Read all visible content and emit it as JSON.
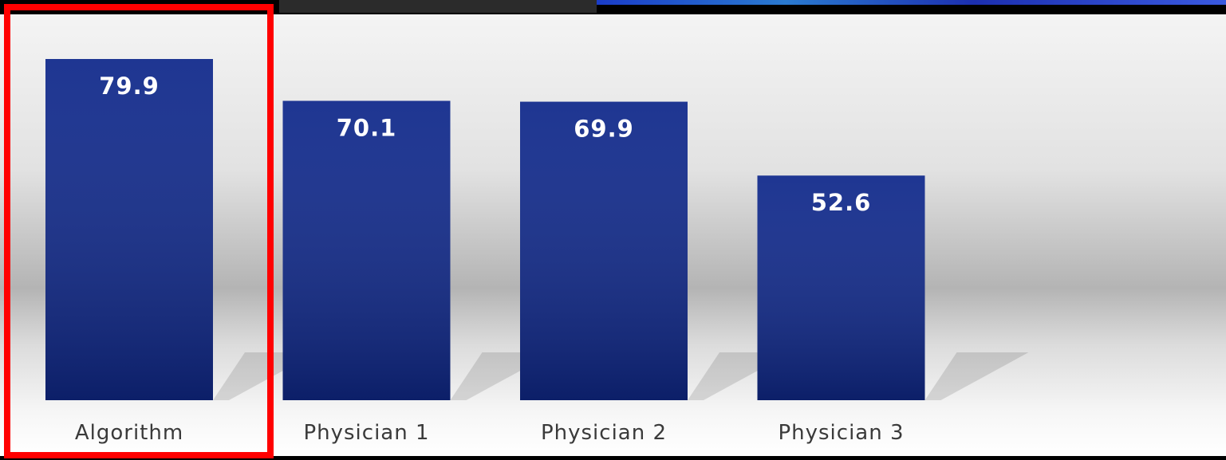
{
  "chart_data": {
    "type": "bar",
    "categories": [
      "Algorithm",
      "Physician 1",
      "Physician 2",
      "Physician 3"
    ],
    "values": [
      79.9,
      70.1,
      69.9,
      52.6
    ],
    "color": "#10298b"
  }
}
